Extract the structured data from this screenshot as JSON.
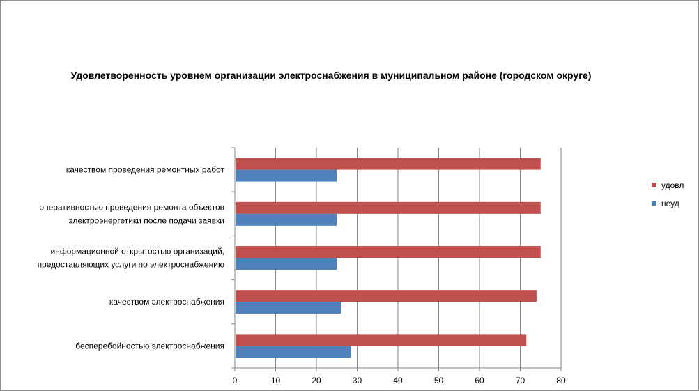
{
  "chart_data": {
    "type": "bar",
    "orientation": "horizontal",
    "title": "Удовлетворенность уровнем организации электроснабжения в муниципальном районе (городском округе)",
    "categories": [
      [
        "качеством проведения ремонтных работ"
      ],
      [
        "оперативностью проведения ремонта объектов",
        "электроэнергетики после подачи заявки"
      ],
      [
        "информационной открытостью организаций,",
        "предоставляющих услуги по электроснабжению"
      ],
      [
        "качеством электроснабжения"
      ],
      [
        "бесперебойностью электроснабжения"
      ]
    ],
    "series": [
      {
        "name": "удовл",
        "color": "#c0504d",
        "values": [
          75,
          75,
          75,
          74,
          71.5
        ]
      },
      {
        "name": "неуд",
        "color": "#4f81bd",
        "values": [
          25,
          25,
          25,
          26,
          28.5
        ]
      }
    ],
    "xlim": [
      0,
      80
    ],
    "xticks": [
      0,
      10,
      20,
      30,
      40,
      50,
      60,
      70,
      80
    ],
    "grid": true,
    "legend_position": "right"
  }
}
